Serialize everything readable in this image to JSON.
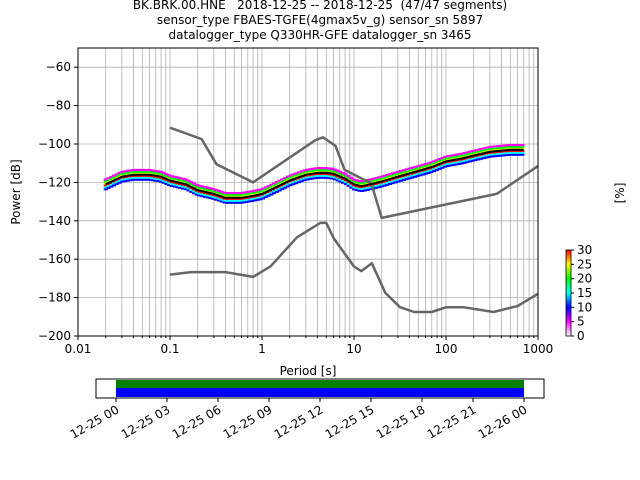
{
  "chart_data": {
    "type": "line",
    "title": [
      "BK.BRK.00.HNE   2018-12-25 -- 2018-12-25  (47/47 segments)",
      "sensor_type FBAES-TGFE(4gmax5v_g) sensor_sn 5897",
      "datalogger_type Q330HR-GFE datalogger_sn 3465"
    ],
    "xlabel": "Period [s]",
    "ylabel": "Power [dB]",
    "xscale": "log",
    "xlim": [
      0.01,
      1000
    ],
    "ylim": [
      -200,
      -50
    ],
    "xticks": [
      0.01,
      0.1,
      1,
      10,
      100,
      1000
    ],
    "xtick_labels": [
      "0.01",
      "0.1",
      "1",
      "10",
      "100",
      "1000"
    ],
    "yticks": [
      -200,
      -180,
      -160,
      -140,
      -120,
      -100,
      -80,
      -60
    ],
    "ytick_labels": [
      "−200",
      "−180",
      "−160",
      "−140",
      "−120",
      "−100",
      "−80",
      "−60"
    ],
    "grid": true,
    "series": [
      {
        "role": "new-high-noise-model",
        "color": "#666666",
        "x": [
          0.1,
          0.22,
          0.32,
          0.8,
          3.8,
          4.6,
          6.3,
          7.9,
          15.4,
          20,
          354.8,
          1000
        ],
        "y": [
          -91.5,
          -97.4,
          -110.5,
          -120,
          -98,
          -96.5,
          -101,
          -113.5,
          -120.5,
          -138.5,
          -126,
          -111.5
        ]
      },
      {
        "role": "new-low-noise-model",
        "color": "#666666",
        "x": [
          0.1,
          0.17,
          0.4,
          0.8,
          1.24,
          2.4,
          4.3,
          5,
          6,
          10,
          12,
          15.6,
          21.9,
          31.6,
          45,
          70,
          101,
          154,
          328,
          600,
          1000
        ],
        "y": [
          -168,
          -166.7,
          -166.7,
          -169.2,
          -163.7,
          -148.6,
          -141.1,
          -141.1,
          -149,
          -163.8,
          -166.2,
          -162.1,
          -177.5,
          -185,
          -187.5,
          -187.5,
          -185,
          -185,
          -187.5,
          -184.4,
          -178
        ]
      },
      {
        "role": "mean-psd",
        "color": "#000000",
        "x": [
          0.02,
          0.03,
          0.04,
          0.06,
          0.08,
          0.1,
          0.15,
          0.2,
          0.3,
          0.4,
          0.6,
          0.8,
          1,
          1.5,
          2,
          3,
          4,
          5,
          6,
          8,
          10,
          12,
          15,
          20,
          30,
          50,
          70,
          100,
          150,
          200,
          300,
          500,
          700
        ],
        "y": [
          -121,
          -117,
          -116,
          -116,
          -117,
          -119,
          -121,
          -124,
          -126,
          -128,
          -128,
          -127,
          -126,
          -122,
          -119,
          -116,
          -115,
          -115,
          -115.5,
          -118,
          -121,
          -122,
          -121,
          -119.5,
          -117,
          -114,
          -112,
          -109,
          -107.5,
          -106,
          -104,
          -103,
          -103
        ]
      }
    ],
    "psd_density_colorbar": {
      "label": "[%]",
      "ticks": [
        0,
        5,
        10,
        15,
        20,
        25,
        30
      ],
      "range": [
        0,
        30
      ]
    },
    "timeline": {
      "tick_labels": [
        "12-25 00",
        "12-25 03",
        "12-25 06",
        "12-25 09",
        "12-25 12",
        "12-25 15",
        "12-25 18",
        "12-25 21",
        "12-26 00"
      ],
      "bar_colors": [
        "#008000",
        "#0000ff"
      ]
    }
  }
}
